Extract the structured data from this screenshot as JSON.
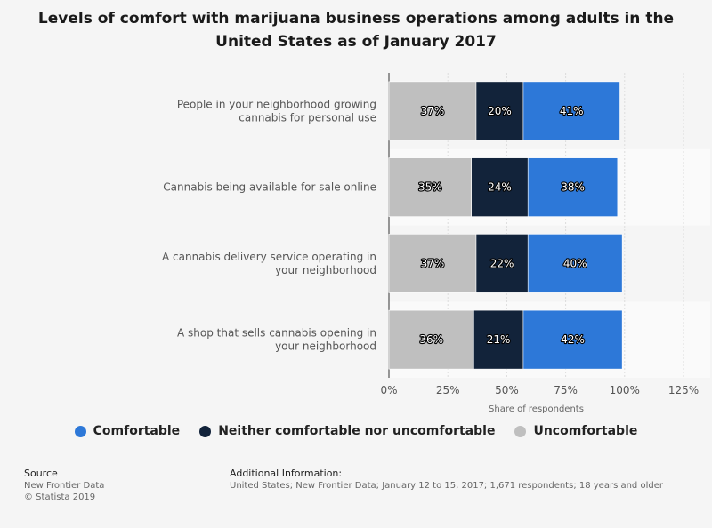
{
  "chart_data": {
    "type": "bar",
    "orientation": "horizontal",
    "stacked": true,
    "title": "Levels of comfort with marijuana business operations among adults in the United States as of January 2017",
    "xlabel": "Share of respondents",
    "ylabel": "",
    "xlim": [
      0,
      125
    ],
    "xticks": [
      "0%",
      "25%",
      "50%",
      "75%",
      "100%",
      "125%"
    ],
    "categories": [
      [
        "People in your neighborhood growing",
        "cannabis for personal use"
      ],
      [
        "Cannabis being available for sale online"
      ],
      [
        "A cannabis delivery service operating in",
        "your neighborhood"
      ],
      [
        "A shop that sells cannabis opening in",
        "your neighborhood"
      ]
    ],
    "series": [
      {
        "name": "Uncomfortable",
        "color": "#bfbfbf",
        "values": [
          37,
          35,
          37,
          36
        ]
      },
      {
        "name": "Neither comfortable nor uncomfortable",
        "color": "#12233a",
        "values": [
          20,
          24,
          22,
          21
        ]
      },
      {
        "name": "Comfortable",
        "color": "#2d78d8",
        "values": [
          41,
          38,
          40,
          42
        ]
      }
    ],
    "grid": true,
    "legend_position": "bottom"
  },
  "legend": [
    {
      "label": "Comfortable",
      "color": "#2d78d8"
    },
    {
      "label": "Neither comfortable nor uncomfortable",
      "color": "#12233a"
    },
    {
      "label": "Uncomfortable",
      "color": "#bfbfbf"
    }
  ],
  "footer": {
    "source_heading": "Source",
    "source_lines": [
      "New Frontier Data",
      "© Statista 2019"
    ],
    "additional_heading": "Additional Information:",
    "additional_text": "United States; New Frontier Data; January 12 to 15, 2017; 1,671 respondents; 18 years and older"
  }
}
